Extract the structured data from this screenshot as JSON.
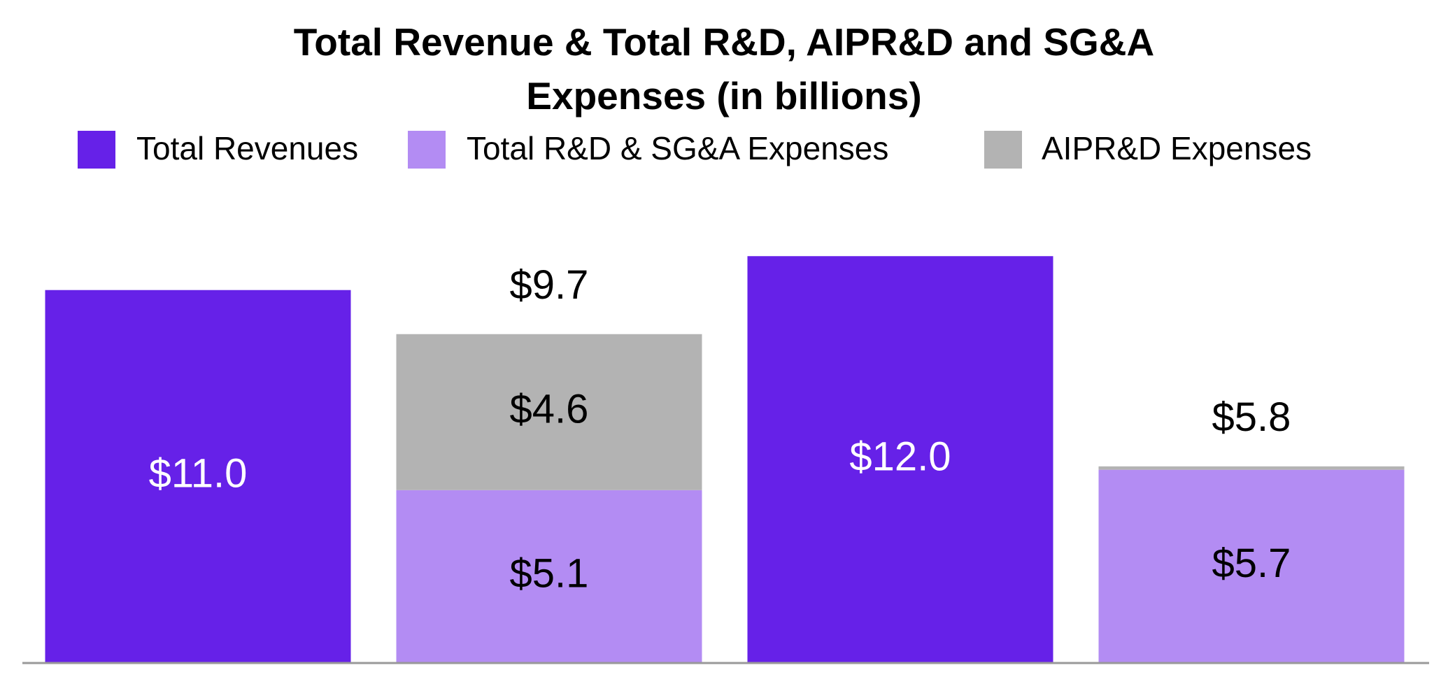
{
  "chart_data": {
    "type": "stacked_bar",
    "title": "Total Revenue & Total R&D, AIPR&D and SG&A Expenses  (in billions)",
    "categories": [
      null,
      null,
      null,
      null
    ],
    "series": [
      {
        "name": "Total Revenues",
        "color": "#6621e8",
        "values": [
          11.0,
          null,
          12.0,
          null
        ],
        "value_labels": [
          "$11.0",
          null,
          "$12.0",
          null
        ]
      },
      {
        "name": "Total R&D & SG&A Expenses",
        "color": "#b38cf3",
        "values": [
          null,
          5.1,
          null,
          5.7
        ],
        "value_labels": [
          null,
          "$5.1",
          null,
          "$5.7"
        ]
      },
      {
        "name": "AIPR&D Expenses",
        "color": "#b3b3b3",
        "values": [
          null,
          4.6,
          null,
          0.1
        ],
        "value_labels": [
          null,
          "$4.6",
          null,
          null
        ]
      }
    ],
    "totals": {
      "values": [
        null,
        9.7,
        null,
        5.8
      ],
      "value_labels": [
        null,
        "$9.7",
        null,
        "$5.8"
      ]
    },
    "ylim": [
      0,
      12.5
    ]
  }
}
